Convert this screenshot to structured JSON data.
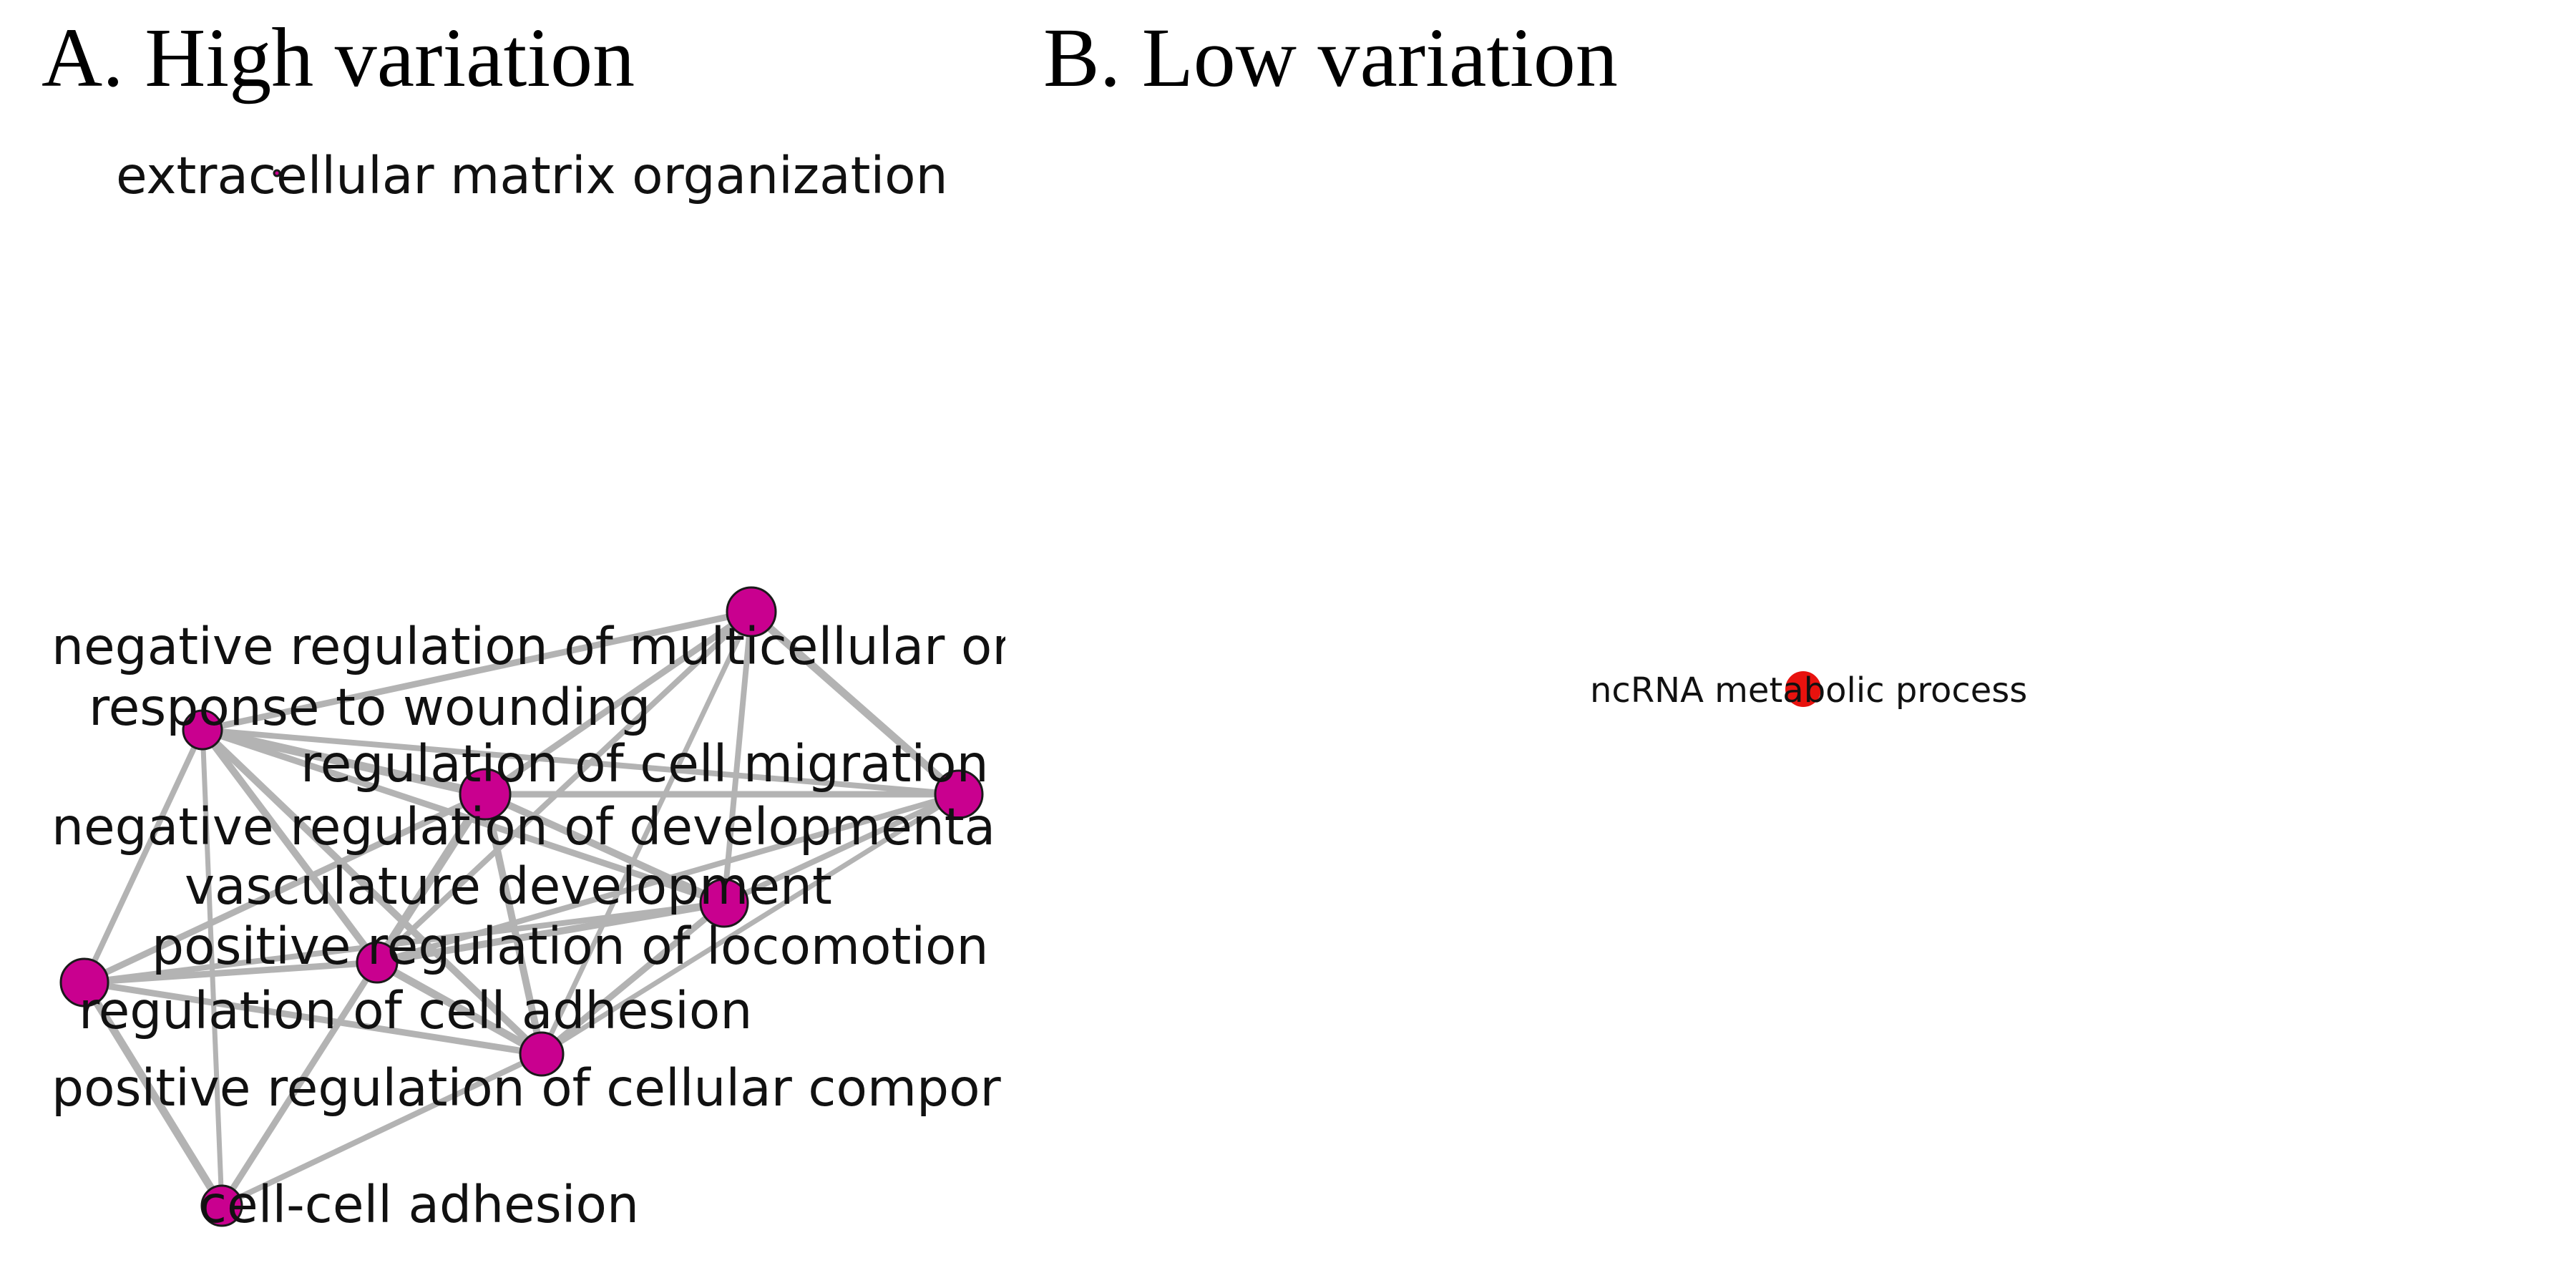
{
  "panels": {
    "a": {
      "title": "A. High variation",
      "node_color": "#c9008f",
      "terms": {
        "extracellular": "extracellular matrix organization",
        "neg_multicellular": "negative regulation of multicellular or",
        "wounding": "response to wounding",
        "cell_migration": "regulation of cell migration",
        "neg_developmental": "negative regulation of developmenta",
        "vasculature": "vasculature development",
        "locomotion": "positive regulation of locomotion",
        "cell_adhesion": "regulation of cell adhesion",
        "cellular_component": "positive regulation of cellular compor",
        "cell_cell_adhesion": "cell-cell adhesion"
      }
    },
    "b": {
      "title": "B. Low variation",
      "node_color": "#e8120e",
      "terms": {
        "ncrna": "ncRNA metabolic process"
      }
    }
  },
  "edge_color": "#b3b3b3"
}
